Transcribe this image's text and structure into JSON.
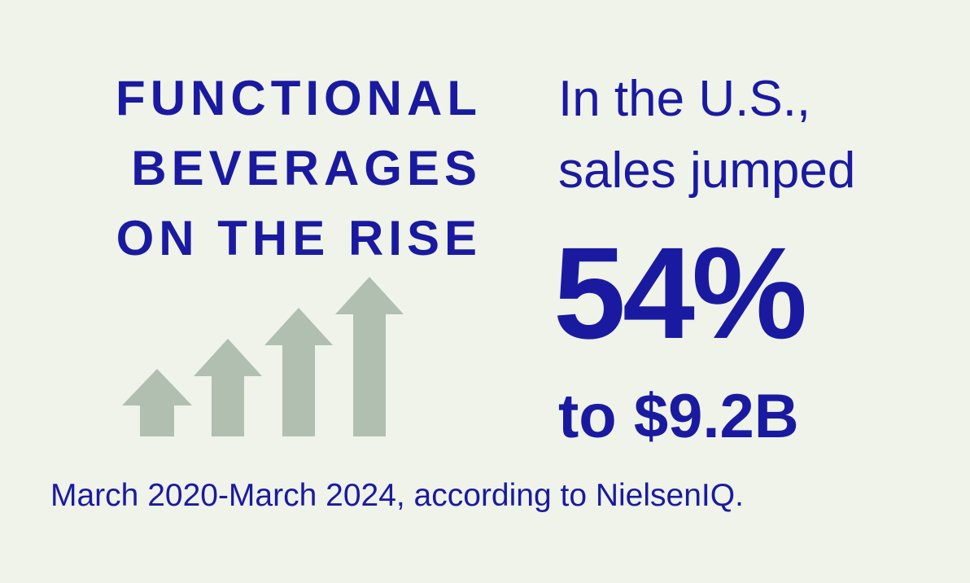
{
  "headline": {
    "line1": "FUNCTIONAL",
    "line2": "BEVERAGES",
    "line3": "ON THE RISE"
  },
  "stat": {
    "intro_line1": "In the U.S.,",
    "intro_line2": "sales jumped",
    "value": "54%",
    "amount": "to $9.2B"
  },
  "footnote": "March 2020-March 2024, according to NielsenIQ.",
  "colors": {
    "background": "#eff3ea",
    "text": "#1a1aa0",
    "arrows": "#b0bfb0"
  },
  "icons": [
    "up-arrow-icon",
    "up-arrow-icon",
    "up-arrow-icon",
    "up-arrow-icon"
  ]
}
